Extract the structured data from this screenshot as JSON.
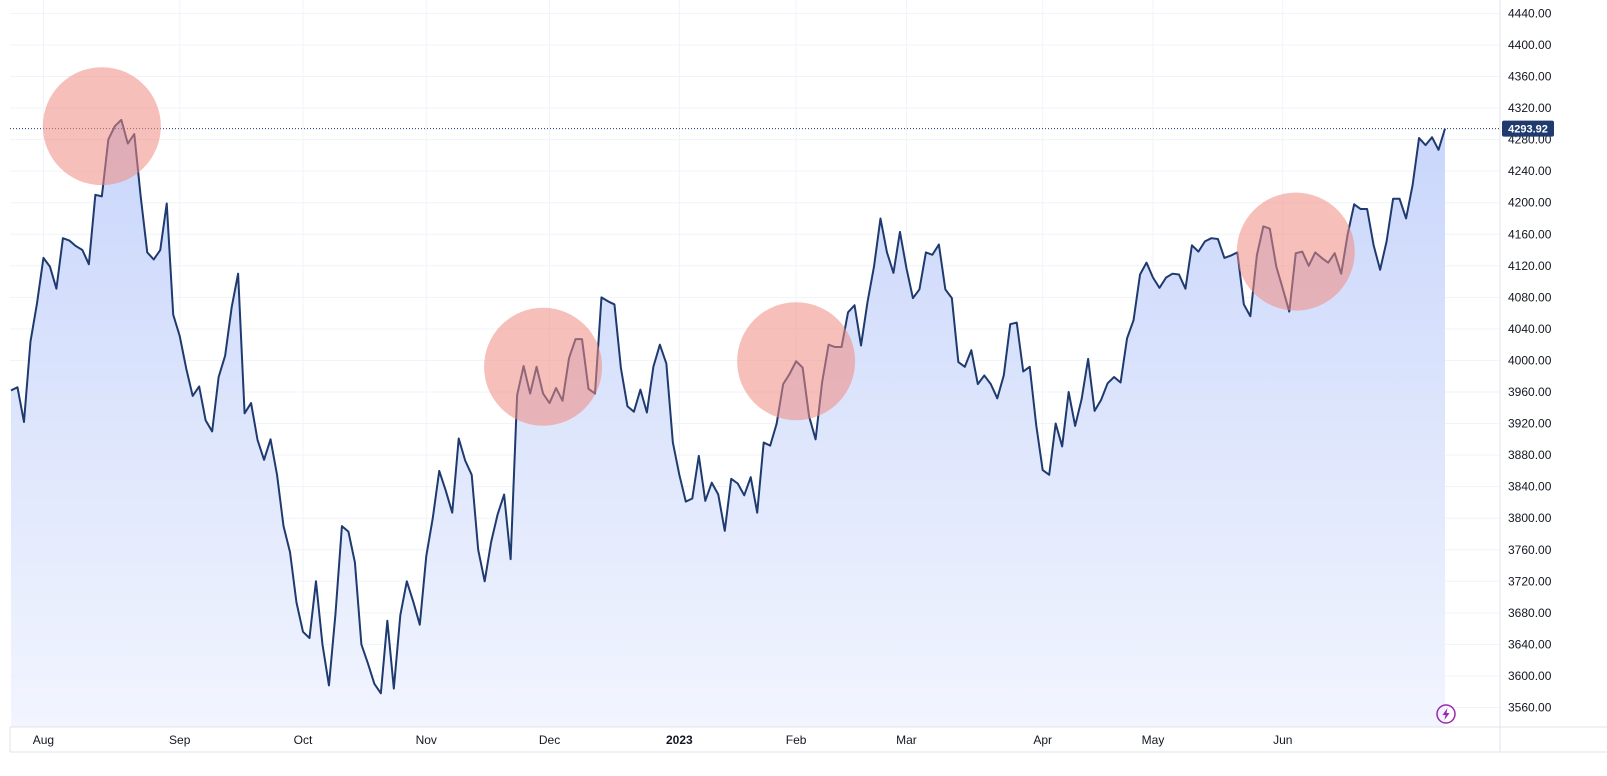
{
  "chart_data": {
    "type": "area",
    "title": "",
    "xlabel": "",
    "ylabel": "",
    "ylim": [
      3540,
      4450
    ],
    "grid": true,
    "y_ticks": [
      3560,
      3600,
      3640,
      3680,
      3720,
      3760,
      3800,
      3840,
      3880,
      3920,
      3960,
      4000,
      4040,
      4080,
      4120,
      4160,
      4200,
      4240,
      4280,
      4320,
      4360,
      4400,
      4440
    ],
    "y_tick_labels": [
      "3560.00",
      "3600.00",
      "3640.00",
      "3680.00",
      "3720.00",
      "3760.00",
      "3800.00",
      "3840.00",
      "3880.00",
      "3920.00",
      "3960.00",
      "4000.00",
      "4040.00",
      "4080.00",
      "4120.00",
      "4160.00",
      "4200.00",
      "4240.00",
      "4280.00",
      "4320.00",
      "4360.00",
      "4400.00",
      "4440.00"
    ],
    "x_ticks": [
      {
        "label": "Aug",
        "index": 5,
        "bold": false
      },
      {
        "label": "Sep",
        "index": 26,
        "bold": false
      },
      {
        "label": "Oct",
        "index": 45,
        "bold": false
      },
      {
        "label": "Nov",
        "index": 64,
        "bold": false
      },
      {
        "label": "Dec",
        "index": 83,
        "bold": false
      },
      {
        "label": "2023",
        "index": 103,
        "bold": true
      },
      {
        "label": "Feb",
        "index": 121,
        "bold": false
      },
      {
        "label": "Mar",
        "index": 138,
        "bold": false
      },
      {
        "label": "Apr",
        "index": 159,
        "bold": false
      },
      {
        "label": "May",
        "index": 176,
        "bold": false
      },
      {
        "label": "Jun",
        "index": 196,
        "bold": false
      }
    ],
    "last_value_label": "4293.92",
    "last_value": 4293.92,
    "line_color": "#1e3a6e",
    "fill_color_top": "#c9d6fb",
    "fill_color_bottom": "#f2f5fe",
    "badge_color": "#1e3a6e",
    "highlight_color": "#f08a80",
    "highlight_indices": [
      14,
      82,
      121,
      198
    ],
    "series": [
      {
        "values": [
          3962,
          3966,
          3922,
          4024,
          4072,
          4130,
          4119,
          4091,
          4155,
          4152,
          4145,
          4140,
          4122,
          4210,
          4208,
          4280,
          4297,
          4305,
          4275,
          4287,
          4207,
          4137,
          4128,
          4140,
          4199,
          4058,
          4031,
          3990,
          3955,
          3967,
          3924,
          3910,
          3979,
          4006,
          4067,
          4110,
          3933,
          3946,
          3899,
          3874,
          3900,
          3855,
          3790,
          3757,
          3693,
          3656,
          3648,
          3720,
          3640,
          3588,
          3678,
          3790,
          3783,
          3744,
          3640,
          3616,
          3590,
          3578,
          3670,
          3584,
          3677,
          3720,
          3694,
          3665,
          3752,
          3800,
          3860,
          3835,
          3807,
          3901,
          3873,
          3855,
          3760,
          3720,
          3770,
          3805,
          3830,
          3748,
          3956,
          3993,
          3958,
          3992,
          3958,
          3946,
          3965,
          3949,
          4003,
          4027,
          4027,
          3964,
          3958,
          4080,
          4075,
          4071,
          3990,
          3942,
          3935,
          3963,
          3934,
          3992,
          4020,
          3996,
          3896,
          3855,
          3821,
          3825,
          3879,
          3822,
          3845,
          3830,
          3784,
          3850,
          3844,
          3829,
          3852,
          3807,
          3896,
          3892,
          3920,
          3970,
          3983,
          3999,
          3991,
          3929,
          3900,
          3972,
          4020,
          4017,
          4017,
          4061,
          4070,
          4019,
          4074,
          4119,
          4180,
          4137,
          4111,
          4163,
          4117,
          4079,
          4090,
          4137,
          4134,
          4147,
          4090,
          4079,
          3998,
          3992,
          4013,
          3970,
          3981,
          3970,
          3952,
          3981,
          4046,
          4048,
          3986,
          3992,
          3918,
          3861,
          3855,
          3920,
          3891,
          3960,
          3917,
          3951,
          4002,
          3936,
          3950,
          3971,
          3979,
          3972,
          4028,
          4051,
          4109,
          4124,
          4105,
          4092,
          4105,
          4110,
          4109,
          4091,
          4146,
          4138,
          4151,
          4155,
          4154,
          4130,
          4133,
          4137,
          4071,
          4056,
          4133,
          4170,
          4167,
          4119,
          4091,
          4062,
          4136,
          4138,
          4120,
          4137,
          4130,
          4124,
          4136,
          4110,
          4160,
          4198,
          4192,
          4192,
          4146,
          4115,
          4151,
          4205,
          4205,
          4180,
          4222,
          4282,
          4273,
          4283,
          4267,
          4293.92
        ]
      }
    ]
  },
  "ui": {
    "lightning_icon": "lightning-icon"
  }
}
